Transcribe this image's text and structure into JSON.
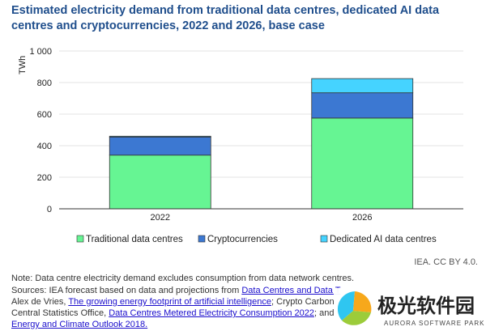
{
  "chart_data": {
    "type": "bar",
    "stacked": true,
    "title": "Estimated electricity demand from traditional data centres, dedicated AI data centres and cryptocurrencies, 2022 and 2026, base case",
    "ylabel": "TWh",
    "xlabel": "",
    "ylim": [
      0,
      1000
    ],
    "yticks": [
      0,
      200,
      400,
      600,
      800,
      1000
    ],
    "ytick_labels": [
      "0",
      "200",
      "400",
      "600",
      "800",
      "1 000"
    ],
    "grid": true,
    "legend_placement": "bottom",
    "categories": [
      "2022",
      "2026"
    ],
    "series": [
      {
        "name": "Traditional data centres",
        "color": "#66f593",
        "values": [
          340,
          575
        ]
      },
      {
        "name": "Cryptocurrencies",
        "color": "#3c78d2",
        "values": [
          115,
          160
        ]
      },
      {
        "name": "Dedicated AI data centres",
        "color": "#45d3ff",
        "values": [
          5,
          90
        ]
      }
    ]
  },
  "credit": "IEA. CC BY 4.0.",
  "note": "Note: Data centre electricity demand excludes consumption from data network centres.",
  "sources": {
    "prefix": "Sources: IEA forecast based on data and projections from ",
    "link1": "Data Centres and Data T",
    "line2_prefix": "Alex de Vries, ",
    "link2": "The growing energy footprint of artificial intelligence",
    "line2_suffix": "; Crypto Carbon",
    "line3_prefix": "Central Statistics Office, ",
    "link3": "Data Centres Metered Electricity Consumption 2022",
    "line3_suffix": "; and",
    "link4": "Energy and Climate Outlook 2018."
  },
  "watermark": {
    "text": "极光软件园",
    "subtext": "AURORA SOFTWARE PARK"
  }
}
